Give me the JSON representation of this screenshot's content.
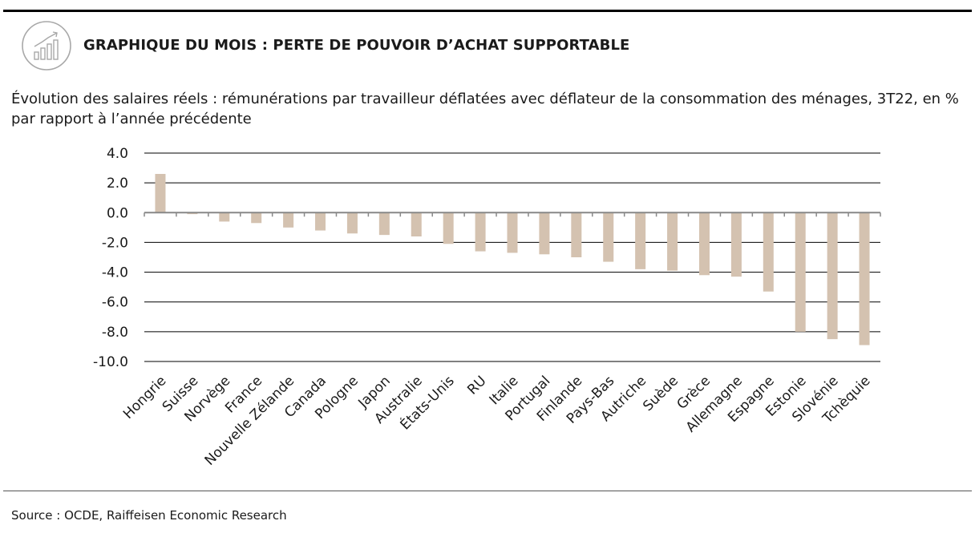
{
  "header": {
    "title": "GRAPHIQUE DU MOIS : PERTE DE POUVOIR D’ACHAT SUPPORTABLE",
    "logo_icon": "bar-chart-growth-icon"
  },
  "chart_data": {
    "type": "bar",
    "title": "Évolution des salaires réels : rémunérations par travailleur déflatées avec déflateur de la consommation des ménages, 3T22, en % par rapport à l’année précédente",
    "categories": [
      "Hongrie",
      "Suisse",
      "Norvège",
      "France",
      "Nouvelle Zélande",
      "Canada",
      "Pologne",
      "Japon",
      "Australie",
      "États-Unis",
      "RU",
      "Italie",
      "Portugal",
      "Finlande",
      "Pays-Bas",
      "Autriche",
      "Suède",
      "Grèce",
      "Allemagne",
      "Espagne",
      "Estonie",
      "Slovénie",
      "Tchèquie"
    ],
    "values": [
      2.6,
      -0.1,
      -0.6,
      -0.7,
      -1.0,
      -1.2,
      -1.4,
      -1.5,
      -1.6,
      -2.1,
      -2.6,
      -2.7,
      -2.8,
      -3.0,
      -3.3,
      -3.8,
      -3.9,
      -4.2,
      -4.3,
      -5.3,
      -8.0,
      -8.5,
      -8.9
    ],
    "yticks": [
      "4.0",
      "2.0",
      "0.0",
      "-2.0",
      "-4.0",
      "-6.0",
      "-8.0",
      "-10.0"
    ],
    "ylim": [
      -10,
      4
    ],
    "grid": true,
    "bar_color": "#d4c2b0",
    "xlabel": "",
    "ylabel": ""
  },
  "footer": {
    "source": "Source : OCDE, Raiffeisen Economic Research"
  }
}
